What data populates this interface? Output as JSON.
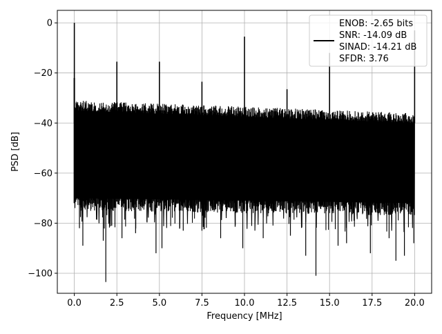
{
  "chart_data": {
    "type": "line",
    "xlabel": "Frequency [MHz]",
    "ylabel": "PSD [dB]",
    "xlim": [
      -1.0,
      21.0
    ],
    "ylim": [
      -108.0,
      5.0
    ],
    "xticks": [
      0.0,
      2.5,
      5.0,
      7.5,
      10.0,
      12.5,
      15.0,
      17.5,
      20.0
    ],
    "xtick_labels": [
      "0.0",
      "2.5",
      "5.0",
      "7.5",
      "10.0",
      "12.5",
      "15.0",
      "17.5",
      "20.0"
    ],
    "yticks": [
      0,
      -20,
      -40,
      -60,
      -80,
      -100
    ],
    "ytick_labels": [
      "0",
      "−20",
      "−40",
      "−60",
      "−80",
      "−100"
    ],
    "grid": true,
    "legend_position": "top-right",
    "legend_lines": [
      "ENOB: -2.65 bits",
      "SNR: -14.09 dB",
      "SINAD: -14.21 dB",
      "SFDR: 3.76"
    ],
    "series": [
      {
        "color": "#000000",
        "noise_floor": {
          "upper_start": -31,
          "upper_end": -36,
          "lower_start": -72,
          "lower_end": -74
        },
        "spikes": [
          {
            "x": 0.0,
            "y": 0.0
          },
          {
            "x": 2.5,
            "y": -15.5
          },
          {
            "x": 5.0,
            "y": -15.5
          },
          {
            "x": 7.5,
            "y": -23.5
          },
          {
            "x": 10.0,
            "y": -5.5
          },
          {
            "x": 12.5,
            "y": -26.5
          },
          {
            "x": 15.0,
            "y": -12.0
          },
          {
            "x": 20.0,
            "y": -3.0
          }
        ],
        "deep_dips": [
          {
            "x": 0.3,
            "y": -82
          },
          {
            "x": 0.5,
            "y": -89
          },
          {
            "x": 1.7,
            "y": -87
          },
          {
            "x": 1.85,
            "y": -103.5
          },
          {
            "x": 2.2,
            "y": -81
          },
          {
            "x": 2.8,
            "y": -86
          },
          {
            "x": 3.6,
            "y": -84
          },
          {
            "x": 4.8,
            "y": -92
          },
          {
            "x": 5.15,
            "y": -90
          },
          {
            "x": 6.4,
            "y": -83
          },
          {
            "x": 7.5,
            "y": -83
          },
          {
            "x": 8.6,
            "y": -86
          },
          {
            "x": 9.9,
            "y": -90
          },
          {
            "x": 11.1,
            "y": -86
          },
          {
            "x": 12.7,
            "y": -85
          },
          {
            "x": 13.6,
            "y": -93
          },
          {
            "x": 14.2,
            "y": -101
          },
          {
            "x": 15.5,
            "y": -89
          },
          {
            "x": 16.0,
            "y": -88
          },
          {
            "x": 17.4,
            "y": -92
          },
          {
            "x": 18.5,
            "y": -86
          },
          {
            "x": 18.9,
            "y": -95
          },
          {
            "x": 19.4,
            "y": -93
          },
          {
            "x": 19.95,
            "y": -88
          }
        ]
      }
    ]
  }
}
